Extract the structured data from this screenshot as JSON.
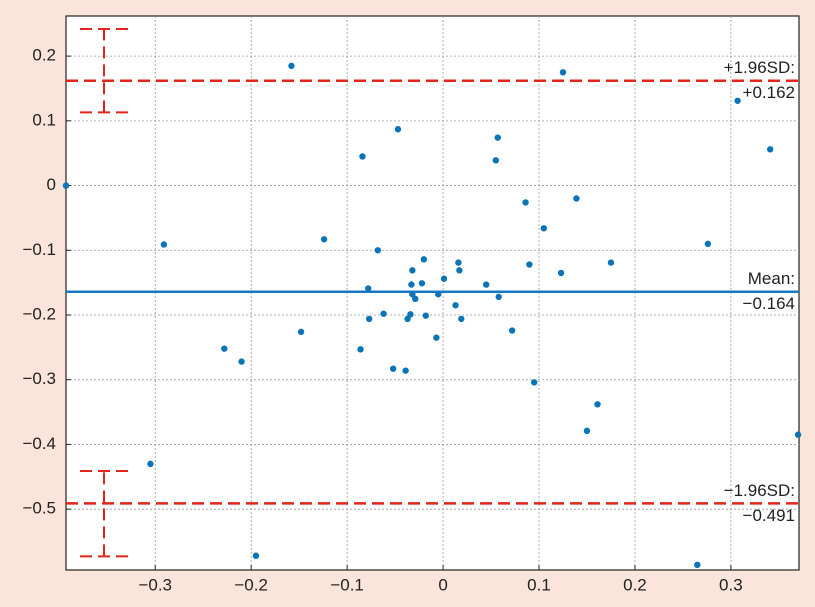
{
  "chart_data": {
    "type": "scatter",
    "x": [
      -0.393,
      -0.158,
      0.125,
      0.307,
      0.341,
      -0.047,
      0.057,
      -0.084,
      0.055,
      0.086,
      0.139,
      0.105,
      -0.291,
      -0.124,
      -0.068,
      0.276,
      -0.02,
      0.016,
      0.017,
      -0.032,
      0.123,
      0.175,
      0.09,
      0.001,
      -0.022,
      -0.033,
      0.045,
      -0.078,
      -0.032,
      -0.005,
      -0.029,
      0.058,
      0.013,
      -0.077,
      -0.062,
      -0.034,
      -0.037,
      -0.018,
      0.019,
      -0.148,
      0.072,
      -0.007,
      -0.228,
      -0.21,
      -0.086,
      -0.052,
      -0.039,
      0.095,
      0.161,
      0.15,
      0.37,
      -0.305,
      -0.195,
      0.265
    ],
    "series": [
      {
        "color": "#0b74b8",
        "values": [
          0,
          0.185,
          0.175,
          0.131,
          0.056,
          0.087,
          0.074,
          0.045,
          0.039,
          -0.026,
          -0.02,
          -0.066,
          -0.091,
          -0.083,
          -0.1,
          -0.09,
          -0.114,
          -0.119,
          -0.131,
          -0.131,
          -0.135,
          -0.119,
          -0.122,
          -0.144,
          -0.151,
          -0.153,
          -0.153,
          -0.159,
          -0.168,
          -0.168,
          -0.175,
          -0.172,
          -0.185,
          -0.206,
          -0.198,
          -0.199,
          -0.206,
          -0.201,
          -0.206,
          -0.226,
          -0.224,
          -0.235,
          -0.252,
          -0.272,
          -0.253,
          -0.283,
          -0.286,
          -0.304,
          -0.338,
          -0.379,
          -0.385,
          -0.43,
          -0.572,
          -0.586
        ]
      }
    ],
    "reference_lines": [
      {
        "name": "+1.96SD:",
        "value": 0.162,
        "value_label": "+0.162",
        "color": "#e2261b",
        "style": "dashed",
        "ci": [
          0.113,
          0.242
        ]
      },
      {
        "name": "Mean:",
        "value": -0.164,
        "value_label": "−0.164",
        "color": "#1578c2",
        "style": "solid"
      },
      {
        "name": "−1.96SD:",
        "value": -0.491,
        "value_label": "−0.491",
        "color": "#e2261b",
        "style": "dashed",
        "ci": [
          -0.573,
          -0.441
        ]
      }
    ],
    "xlim": [
      -0.393,
      0.371
    ],
    "ylim": [
      -0.594,
      0.262
    ],
    "xticks": [
      {
        "value": -0.3,
        "label": "−0.3"
      },
      {
        "value": -0.2,
        "label": "−0.2"
      },
      {
        "value": -0.1,
        "label": "−0.1"
      },
      0,
      0.1,
      0.2,
      0.3
    ],
    "yticks": [
      {
        "value": -0.5,
        "label": "−0.5"
      },
      {
        "value": -0.4,
        "label": "−0.4"
      },
      {
        "value": -0.3,
        "label": "−0.3"
      },
      {
        "value": -0.2,
        "label": "−0.2"
      },
      {
        "value": -0.1,
        "label": "−0.1"
      },
      0,
      0.1,
      0.2
    ],
    "grid": true
  }
}
